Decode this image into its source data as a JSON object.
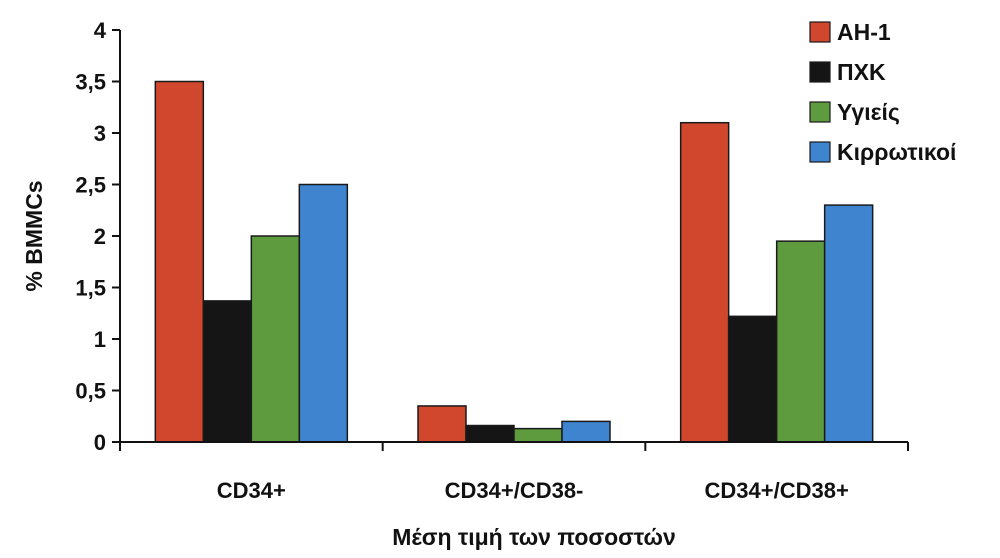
{
  "chart_data": {
    "type": "bar",
    "title": "",
    "xlabel": "Μέση τιμή των ποσοστών",
    "ylabel": "% BMMCs",
    "ylim": [
      0,
      4
    ],
    "yticks": [
      0,
      0.5,
      1,
      1.5,
      2,
      2.5,
      3,
      3.5,
      4
    ],
    "ytick_labels": [
      "0",
      "0,5",
      "1",
      "1,5",
      "2",
      "2,5",
      "3",
      "3,5",
      "4"
    ],
    "categories": [
      "CD34+",
      "CD34+/CD38-",
      "CD34+/CD38+"
    ],
    "series": [
      {
        "name": "AH-1",
        "color": "#d0472e",
        "values": [
          3.5,
          0.35,
          3.1
        ]
      },
      {
        "name": "ΠΧΚ",
        "color": "#151515",
        "values": [
          1.37,
          0.16,
          1.22
        ]
      },
      {
        "name": "Υγιείς",
        "color": "#5e9a3e",
        "values": [
          2.0,
          0.13,
          1.95
        ]
      },
      {
        "name": "Κιρρωτικοί",
        "color": "#3f84cf",
        "values": [
          2.5,
          0.2,
          2.3
        ]
      }
    ],
    "legend_position": "top-right",
    "grid": false
  }
}
